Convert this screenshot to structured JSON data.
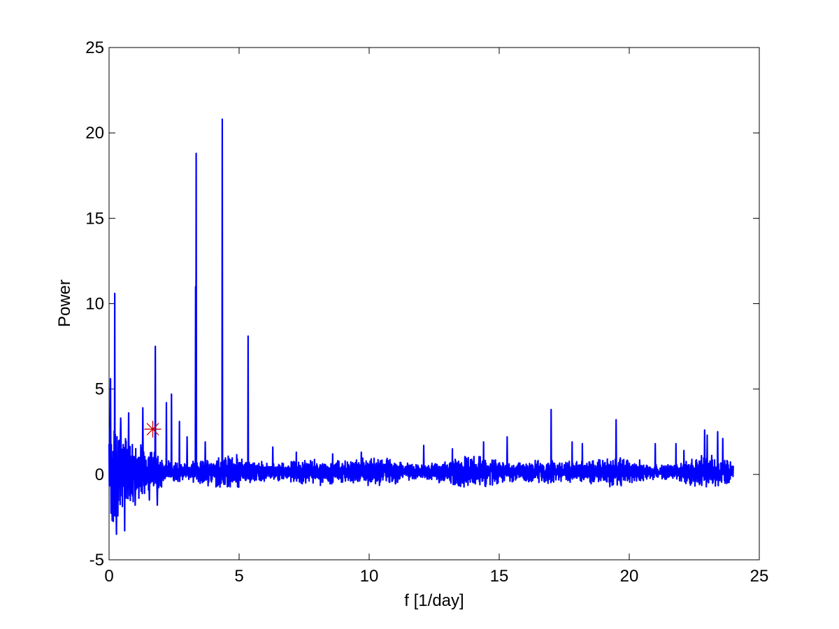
{
  "chart_data": {
    "type": "line",
    "title": "",
    "xlabel": "f [1/day]",
    "ylabel": "Power",
    "xlim": [
      0,
      25
    ],
    "ylim": [
      -5,
      25
    ],
    "xticks": [
      0,
      5,
      10,
      15,
      20,
      25
    ],
    "yticks": [
      -5,
      0,
      5,
      10,
      15,
      20,
      25
    ],
    "grid": false,
    "series": [
      {
        "color": "#0000ff",
        "x_range": [
          0,
          24
        ],
        "baseline_noise": 0.45,
        "peaks": [
          {
            "x": 0.05,
            "y": 5.6
          },
          {
            "x": 0.12,
            "y": -2.7
          },
          {
            "x": 0.22,
            "y": 10.6
          },
          {
            "x": 0.28,
            "y": -3.5
          },
          {
            "x": 0.45,
            "y": 3.3
          },
          {
            "x": 0.6,
            "y": -3.3
          },
          {
            "x": 0.75,
            "y": 3.6
          },
          {
            "x": 1.0,
            "y": -1.8
          },
          {
            "x": 1.3,
            "y": 3.9
          },
          {
            "x": 1.55,
            "y": -1.5
          },
          {
            "x": 1.78,
            "y": 7.5
          },
          {
            "x": 1.85,
            "y": -1.8
          },
          {
            "x": 2.2,
            "y": 4.2
          },
          {
            "x": 2.4,
            "y": 4.7
          },
          {
            "x": 2.7,
            "y": 3.1
          },
          {
            "x": 3.0,
            "y": 2.2
          },
          {
            "x": 3.35,
            "y": 18.8
          },
          {
            "x": 3.33,
            "y": 11.0
          },
          {
            "x": 3.7,
            "y": 1.9
          },
          {
            "x": 4.35,
            "y": 20.8
          },
          {
            "x": 5.35,
            "y": 8.1
          },
          {
            "x": 6.3,
            "y": 1.6
          },
          {
            "x": 7.2,
            "y": 1.3
          },
          {
            "x": 8.6,
            "y": 1.2
          },
          {
            "x": 9.7,
            "y": 1.3
          },
          {
            "x": 12.1,
            "y": 1.7
          },
          {
            "x": 13.2,
            "y": 1.5
          },
          {
            "x": 14.4,
            "y": 1.9
          },
          {
            "x": 15.3,
            "y": 2.2
          },
          {
            "x": 17.0,
            "y": 3.8
          },
          {
            "x": 17.8,
            "y": 1.9
          },
          {
            "x": 18.2,
            "y": 1.8
          },
          {
            "x": 19.5,
            "y": 3.2
          },
          {
            "x": 21.0,
            "y": 1.8
          },
          {
            "x": 21.8,
            "y": 1.8
          },
          {
            "x": 22.1,
            "y": 1.4
          },
          {
            "x": 22.9,
            "y": 2.6
          },
          {
            "x": 23.0,
            "y": 2.3
          },
          {
            "x": 23.4,
            "y": 2.5
          },
          {
            "x": 23.6,
            "y": 2.1
          }
        ]
      }
    ],
    "annotations": [
      {
        "type": "marker",
        "symbol": "asterisk",
        "color": "#cc0000",
        "x": 1.68,
        "y": 2.65
      }
    ]
  }
}
